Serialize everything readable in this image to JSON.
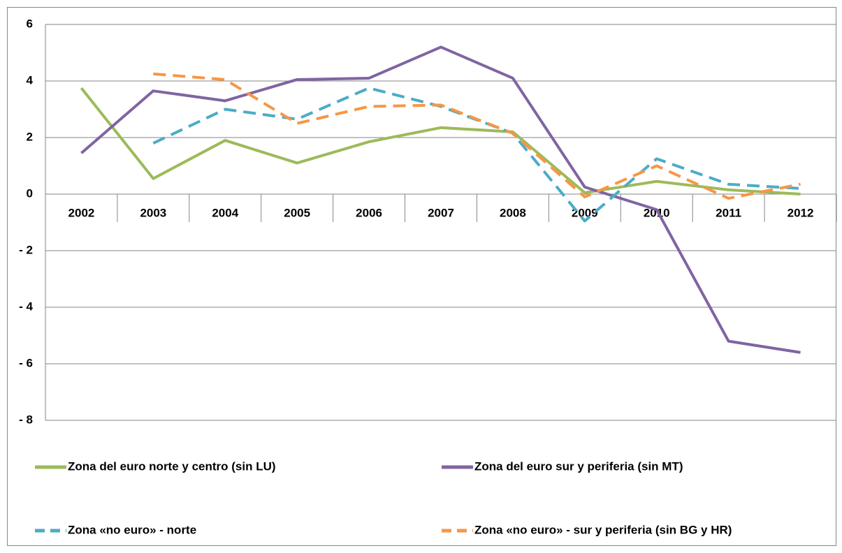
{
  "chart_data": {
    "type": "line",
    "categories": [
      "2002",
      "2003",
      "2004",
      "2005",
      "2006",
      "2007",
      "2008",
      "2009",
      "2010",
      "2011",
      "2012"
    ],
    "series": [
      {
        "name": "Zona del euro norte y centro (sin LU)",
        "color": "#9bbb59",
        "dashed": false,
        "values": [
          3.75,
          0.55,
          1.9,
          1.1,
          1.85,
          2.35,
          2.2,
          0.05,
          0.45,
          0.15,
          0.0
        ]
      },
      {
        "name": "Zona del euro sur y periferia (sin MT)",
        "color": "#8064a2",
        "dashed": false,
        "values": [
          1.45,
          3.65,
          3.3,
          4.05,
          4.1,
          5.2,
          4.1,
          0.25,
          -0.55,
          -5.2,
          -5.6
        ]
      },
      {
        "name": "Zona «no euro» - norte",
        "color": "#4bacc6",
        "dashed": true,
        "values": [
          null,
          1.8,
          3.0,
          2.65,
          3.75,
          3.1,
          2.15,
          -0.95,
          1.25,
          0.35,
          0.2
        ]
      },
      {
        "name": "Zona «no euro» - sur y periferia (sin BG y HR)",
        "color": "#f79646",
        "dashed": true,
        "values": [
          null,
          4.25,
          4.05,
          2.5,
          3.1,
          3.15,
          2.15,
          -0.1,
          1.0,
          -0.15,
          0.35
        ]
      }
    ],
    "ylim": [
      -8,
      6
    ],
    "yticks": [
      {
        "value": -8,
        "label": "- 8"
      },
      {
        "value": -6,
        "label": "- 6"
      },
      {
        "value": -4,
        "label": "- 4"
      },
      {
        "value": -2,
        "label": "- 2"
      },
      0,
      2,
      4,
      6
    ],
    "grid": true,
    "legend": "bottom"
  }
}
